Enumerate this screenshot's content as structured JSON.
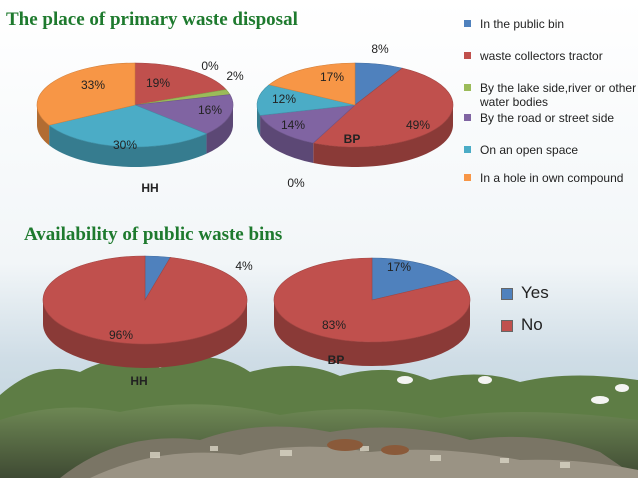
{
  "colors": {
    "public_bin": "#4f81bd",
    "collectors": "#c0504d",
    "lake": "#9bbb59",
    "road": "#8064a2",
    "open_space": "#4bacc6",
    "own_hole": "#f79646",
    "yes": "#4f81bd",
    "no": "#c0504d",
    "title": "#1e7a2e"
  },
  "sections": {
    "disposal_title": "The place of primary waste disposal",
    "bins_title": "Availability of public waste bins"
  },
  "legend_disposal": [
    {
      "label": "In the public bin",
      "color": "#4f81bd"
    },
    {
      "label": "waste collectors tractor",
      "color": "#c0504d"
    },
    {
      "label": "By the lake side,river or other water bodies",
      "color": "#9bbb59"
    },
    {
      "label": "By the road or street side",
      "color": "#8064a2"
    },
    {
      "label": "On an open space",
      "color": "#4bacc6"
    },
    {
      "label": "In a hole in own compound",
      "color": "#f79646"
    }
  ],
  "legend_bins": [
    {
      "label": "Yes",
      "color": "#4f81bd"
    },
    {
      "label": "No",
      "color": "#c0504d"
    }
  ],
  "chart_data": [
    {
      "type": "pie",
      "title": "HH",
      "categories": [
        "In the public bin",
        "waste collectors tractor",
        "By the lake side,river or other water bodies",
        "By the road or street side",
        "On an open space",
        "In a hole in own compound"
      ],
      "values": [
        0,
        19,
        2,
        16,
        30,
        33
      ],
      "labels": [
        "0%",
        "19%",
        "2%",
        "16%",
        "30%",
        "33%"
      ]
    },
    {
      "type": "pie",
      "title": "BP",
      "categories": [
        "In the public bin",
        "waste collectors tractor",
        "By the lake side,river or other water bodies",
        "By the road or street side",
        "On an open space",
        "In a hole in own compound"
      ],
      "values": [
        8,
        49,
        0,
        14,
        12,
        17
      ],
      "labels": [
        "8%",
        "49%",
        "0%",
        "14%",
        "12%",
        "17%"
      ]
    },
    {
      "type": "pie",
      "title": "HH",
      "categories": [
        "Yes",
        "No"
      ],
      "values": [
        4,
        96
      ],
      "labels": [
        "4%",
        "96%"
      ]
    },
    {
      "type": "pie",
      "title": "BP",
      "categories": [
        "Yes",
        "No"
      ],
      "values": [
        17,
        83
      ],
      "labels": [
        "17%",
        "83%"
      ]
    }
  ]
}
